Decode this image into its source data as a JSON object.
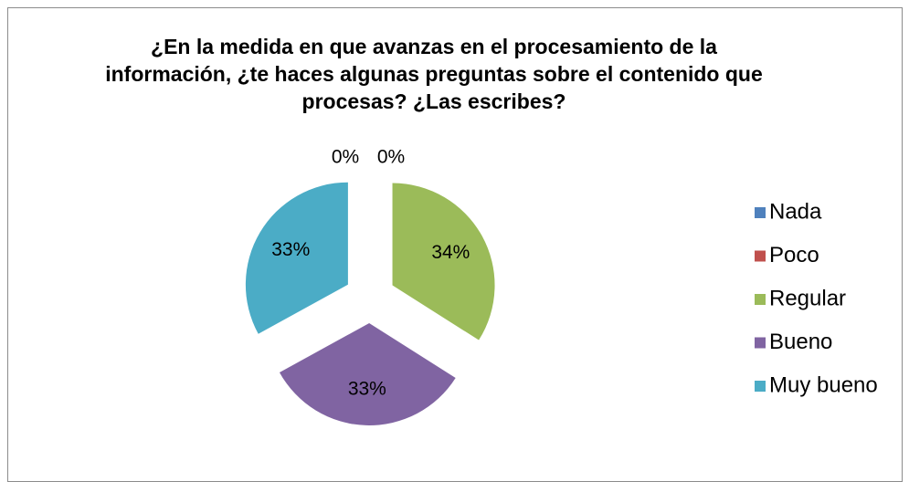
{
  "chart_data": {
    "type": "pie",
    "title": "¿En la medida en que avanzas en el procesamiento de la información, ¿te haces algunas preguntas sobre el contenido que procesas? ¿Las escribes?",
    "categories": [
      "Nada",
      "Poco",
      "Regular",
      "Bueno",
      "Muy bueno"
    ],
    "values": [
      0,
      0,
      34,
      33,
      33
    ],
    "value_labels": [
      "0%",
      "0%",
      "34%",
      "33%",
      "33%"
    ],
    "colors": [
      "#4f81bd",
      "#c0504d",
      "#9bbb59",
      "#8064a2",
      "#4bacc6"
    ],
    "legend": "right"
  }
}
